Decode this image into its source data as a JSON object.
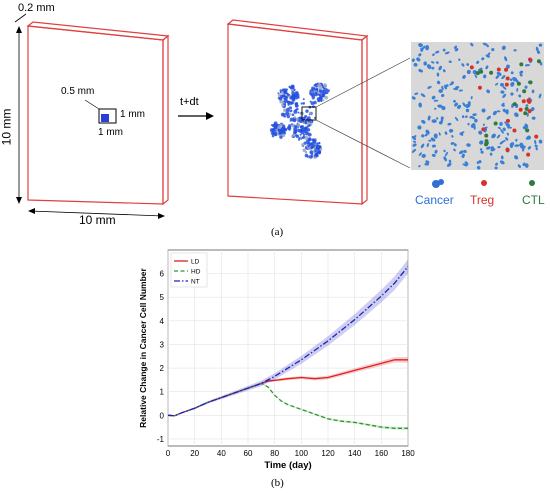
{
  "panel_a": {
    "dim_thickness": "0.2 mm",
    "dim_height": "10 mm",
    "dim_width": "10 mm",
    "inner_offset": "0.5 mm",
    "inner_width": "1 mm",
    "inner_height": "1 mm",
    "arrow_label": "t+dt",
    "legend": [
      {
        "label": "Cancer",
        "color": "#2f6fd6"
      },
      {
        "label": "Treg",
        "color": "#d9302b"
      },
      {
        "label": "CTL",
        "color": "#2f7a3c"
      }
    ],
    "caption": "(a)"
  },
  "panel_b": {
    "caption": "(b)"
  },
  "chart_data": {
    "type": "line",
    "xlabel": "Time (day)",
    "ylabel": "Relative Change in Cancer Cell Number",
    "xlim": [
      0,
      180
    ],
    "ylim": [
      -1.3,
      7
    ],
    "xticks": [
      0,
      20,
      40,
      60,
      80,
      100,
      120,
      140,
      160,
      180
    ],
    "yticks": [
      -1,
      0,
      1,
      2,
      3,
      4,
      5,
      6
    ],
    "grid": true,
    "legend_position": "top-left",
    "series": [
      {
        "name": "LD",
        "color": "#e02020",
        "style": "solid",
        "x": [
          0,
          5,
          10,
          20,
          30,
          40,
          50,
          60,
          70,
          75,
          80,
          90,
          100,
          110,
          120,
          130,
          140,
          150,
          160,
          170,
          180
        ],
        "y": [
          0,
          -0.02,
          0.1,
          0.3,
          0.55,
          0.75,
          0.95,
          1.15,
          1.35,
          1.45,
          1.48,
          1.55,
          1.6,
          1.55,
          1.6,
          1.75,
          1.9,
          2.05,
          2.2,
          2.35,
          2.35
        ]
      },
      {
        "name": "HD",
        "color": "#2a9a2a",
        "style": "dashed",
        "x": [
          0,
          5,
          10,
          20,
          30,
          40,
          50,
          60,
          70,
          75,
          80,
          85,
          90,
          100,
          110,
          120,
          130,
          140,
          150,
          160,
          170,
          180
        ],
        "y": [
          0,
          -0.02,
          0.1,
          0.3,
          0.55,
          0.75,
          0.95,
          1.15,
          1.35,
          1.2,
          0.85,
          0.6,
          0.45,
          0.25,
          0.05,
          -0.15,
          -0.25,
          -0.3,
          -0.4,
          -0.5,
          -0.55,
          -0.55
        ]
      },
      {
        "name": "NT",
        "color": "#2020c0",
        "style": "dashdot",
        "x": [
          0,
          5,
          10,
          20,
          30,
          40,
          50,
          60,
          70,
          75,
          80,
          90,
          100,
          110,
          120,
          130,
          140,
          150,
          160,
          170,
          180
        ],
        "y": [
          0,
          -0.02,
          0.1,
          0.3,
          0.55,
          0.75,
          0.95,
          1.15,
          1.35,
          1.5,
          1.65,
          2.0,
          2.35,
          2.75,
          3.15,
          3.6,
          4.05,
          4.55,
          5.05,
          5.6,
          6.3
        ]
      }
    ]
  }
}
